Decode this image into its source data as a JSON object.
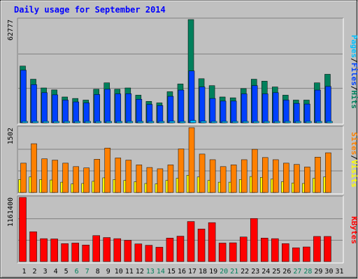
{
  "title": "Daily usage for September 2014",
  "colors": {
    "background": "#c0c0c0",
    "panel": "#c0c0c0",
    "title": "#0000ff",
    "hits": "#00805c",
    "files": "#0040ff",
    "pages": "#00c0ff",
    "visits": "#ff8000",
    "sites": "#ffff00",
    "kbytes": "#ff0000",
    "weekend_label": "#00805c",
    "weekday_label": "#000000"
  },
  "legend": {
    "pages": "Pages",
    "files": "Files",
    "hits": "Hits",
    "sep": "/",
    "sites": "Sites",
    "visits": "Visits",
    "kbytes": "KBytes"
  },
  "chart_data": [
    {
      "type": "bar",
      "name": "hits-files-pages",
      "y_max_label": "62777",
      "ylim": [
        0,
        62777
      ],
      "categories": [
        "1",
        "2",
        "3",
        "4",
        "5",
        "6",
        "7",
        "8",
        "9",
        "10",
        "11",
        "12",
        "13",
        "14",
        "15",
        "16",
        "17",
        "18",
        "19",
        "20",
        "21",
        "22",
        "23",
        "24",
        "25",
        "26",
        "27",
        "28",
        "29",
        "30",
        "31"
      ],
      "weekend_days": [
        "6",
        "7",
        "13",
        "14",
        "20",
        "21",
        "27",
        "28"
      ],
      "series": [
        {
          "name": "Hits",
          "values": [
            34500,
            26500,
            21200,
            20000,
            15700,
            14800,
            13800,
            20400,
            24300,
            20400,
            21200,
            16800,
            13000,
            12100,
            18900,
            23600,
            62777,
            26800,
            22600,
            15700,
            15200,
            20800,
            26500,
            25300,
            21800,
            16800,
            13800,
            13800,
            24300,
            29500,
            0
          ]
        },
        {
          "name": "Files",
          "values": [
            32000,
            23200,
            18300,
            17000,
            13800,
            12700,
            12100,
            17200,
            20400,
            17600,
            17700,
            14300,
            11200,
            10500,
            16100,
            19900,
            31500,
            21800,
            14800,
            13200,
            13200,
            17600,
            22600,
            17600,
            18300,
            13800,
            11800,
            11400,
            19900,
            22100,
            0
          ]
        },
        {
          "name": "Pages",
          "values": [
            700,
            600,
            600,
            500,
            500,
            400,
            400,
            500,
            600,
            500,
            500,
            400,
            300,
            400,
            1000,
            700,
            1400,
            1000,
            600,
            500,
            500,
            500,
            600,
            500,
            500,
            500,
            400,
            400,
            600,
            700,
            0
          ]
        }
      ]
    },
    {
      "type": "bar",
      "name": "visits-sites",
      "y_max_label": "1502",
      "ylim": [
        0,
        1502
      ],
      "categories": [
        "1",
        "2",
        "3",
        "4",
        "5",
        "6",
        "7",
        "8",
        "9",
        "10",
        "11",
        "12",
        "13",
        "14",
        "15",
        "16",
        "17",
        "18",
        "19",
        "20",
        "21",
        "22",
        "23",
        "24",
        "25",
        "26",
        "27",
        "28",
        "29",
        "30",
        "31"
      ],
      "series": [
        {
          "name": "Visits",
          "values": [
            680,
            1130,
            780,
            750,
            680,
            600,
            570,
            770,
            1030,
            800,
            750,
            640,
            580,
            550,
            640,
            1010,
            1502,
            890,
            760,
            600,
            640,
            760,
            1000,
            810,
            760,
            680,
            650,
            590,
            820,
            920,
            0
          ]
        },
        {
          "name": "Sites",
          "values": [
            300,
            360,
            300,
            290,
            240,
            200,
            210,
            260,
            340,
            300,
            280,
            250,
            210,
            200,
            280,
            330,
            400,
            360,
            280,
            240,
            240,
            300,
            370,
            350,
            310,
            250,
            220,
            210,
            330,
            360,
            0
          ]
        }
      ]
    },
    {
      "type": "bar",
      "name": "kbytes",
      "y_max_label": "1161400",
      "ylim": [
        0,
        1161400
      ],
      "categories": [
        "1",
        "2",
        "3",
        "4",
        "5",
        "6",
        "7",
        "8",
        "9",
        "10",
        "11",
        "12",
        "13",
        "14",
        "15",
        "16",
        "17",
        "18",
        "19",
        "20",
        "21",
        "22",
        "23",
        "24",
        "25",
        "26",
        "27",
        "28",
        "29",
        "30",
        "31"
      ],
      "series": [
        {
          "name": "KBytes",
          "values": [
            1161400,
            540000,
            415000,
            410000,
            325000,
            335000,
            300000,
            470000,
            435000,
            415000,
            385000,
            320000,
            295000,
            260000,
            425000,
            460000,
            725000,
            590000,
            705000,
            335000,
            340000,
            445000,
            780000,
            425000,
            415000,
            325000,
            250000,
            265000,
            455000,
            455000,
            0
          ]
        }
      ]
    }
  ]
}
